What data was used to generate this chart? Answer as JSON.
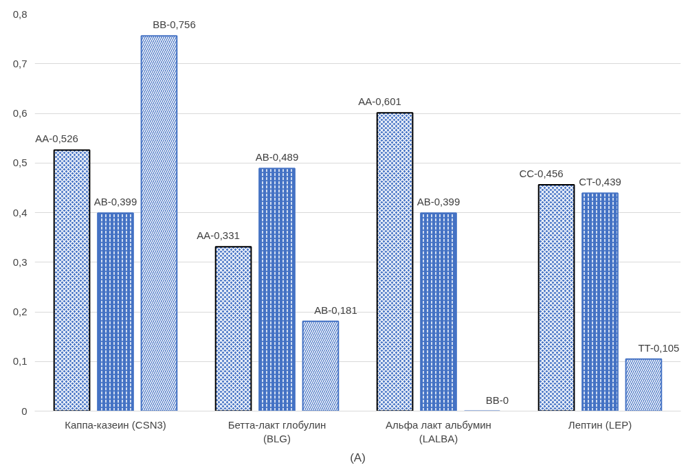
{
  "chart_data": {
    "type": "bar",
    "categories": [
      "Каппа-казеин (CSN3)",
      "Бетта-лакт глобулин (BLG)",
      "Альфа лакт альбумин (LALBA)",
      "Лептин (LEP)"
    ],
    "series": [
      {
        "color": "#4472c4",
        "values": [
          0.526,
          0.331,
          0.601,
          0.456
        ],
        "value_labels": [
          "AA-0,526",
          "AA-0,331",
          "AA-0,601",
          "CC-0,456"
        ]
      },
      {
        "color": "#4472c4",
        "values": [
          0.399,
          0.489,
          0.399,
          0.439
        ],
        "value_labels": [
          "AB-0,399",
          "AB-0,489",
          "AB-0,399",
          "CT-0,439"
        ]
      },
      {
        "color": "#4472c4",
        "values": [
          0.756,
          0.181,
          0,
          0.105
        ],
        "value_labels": [
          "BB-0,756",
          "AB-0,181",
          "BB-0",
          "TT-0,105"
        ]
      }
    ],
    "ylim": [
      0,
      0.8
    ],
    "yticks": [
      0,
      {
        "value": 0.1,
        "label": "0,1"
      },
      {
        "value": 0.2,
        "label": "0,2"
      },
      {
        "value": 0.3,
        "label": "0,3"
      },
      {
        "value": 0.4,
        "label": "0,4"
      },
      {
        "value": 0.5,
        "label": "0,5"
      },
      {
        "value": 0.6,
        "label": "0,6"
      },
      {
        "value": 0.7,
        "label": "0,7"
      },
      {
        "value": 0.8,
        "label": "0,8"
      }
    ],
    "grid": "y",
    "annotations": [
      "(A)"
    ]
  }
}
